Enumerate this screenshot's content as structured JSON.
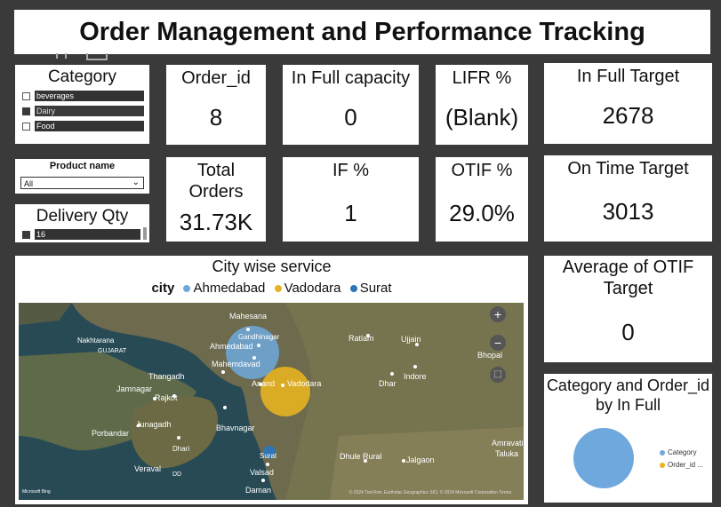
{
  "title": "Order Management and Performance Tracking",
  "category_slicer": {
    "title": "Category",
    "items": [
      {
        "label": "beverages",
        "checked": false
      },
      {
        "label": "Dairy",
        "checked": true
      },
      {
        "label": "Food",
        "checked": false
      }
    ]
  },
  "product_slicer": {
    "title": "Product name",
    "selected": "All"
  },
  "delivery_slicer": {
    "title": "Delivery Qty",
    "item": "16"
  },
  "kpis": {
    "order_id": {
      "label": "Order_id",
      "value": "8"
    },
    "in_full_capacity": {
      "label": "In Full capacity",
      "value": "0"
    },
    "lifr": {
      "label": "LIFR %",
      "value": "(Blank)"
    },
    "in_full_target": {
      "label": "In Full Target",
      "value": "2678"
    },
    "total_orders": {
      "label": "Total Orders",
      "value": "31.73K"
    },
    "if_pct": {
      "label": "IF %",
      "value": "1"
    },
    "otif": {
      "label": "OTIF %",
      "value": "29.0%"
    },
    "on_time_target": {
      "label": "On Time Target",
      "value": "3013"
    },
    "avg_otif_target": {
      "label": "Average of OTIF Target",
      "value": "0"
    }
  },
  "map_visual": {
    "title": "City wise service",
    "legend_title": "city",
    "legend": [
      {
        "name": "Ahmedabad",
        "color": "#6fa8dc"
      },
      {
        "name": "Vadodara",
        "color": "#e6b422"
      },
      {
        "name": "Surat",
        "color": "#2e75b6"
      }
    ],
    "places": [
      "Mahesana",
      "Gandhinagar",
      "Ahmedabad",
      "Mahemdavad",
      "Nakhtarana",
      "GUJARAT",
      "Thangadh",
      "Jamnagar",
      "Rajkot",
      "Anand",
      "Vadodara",
      "Ratlam",
      "Ujjain",
      "Bhopal",
      "Indore",
      "Dhar",
      "Porbandar",
      "Junagadh",
      "Bhavnagar",
      "Dhari",
      "Veraval",
      "DD",
      "Surat",
      "Valsad",
      "Daman",
      "Dhule Rural",
      "Jalgaon",
      "Amravati",
      "Taluka"
    ],
    "brand": "Microsoft Bing",
    "copyright": "© 2024 TomTom, Earthstar Geographics SIO, © 2024 Microsoft Corporation  Terms",
    "controls": {
      "zoom_in": "+",
      "zoom_out": "−",
      "select": "⬚"
    }
  },
  "pie_visual": {
    "title": "Category and Order_id by In Full",
    "color": "#6fa8dc",
    "legend": [
      {
        "name": "Category",
        "color": "#6fa8dc"
      },
      {
        "name": "Order_id ...",
        "color": "#e6b422"
      }
    ]
  }
}
